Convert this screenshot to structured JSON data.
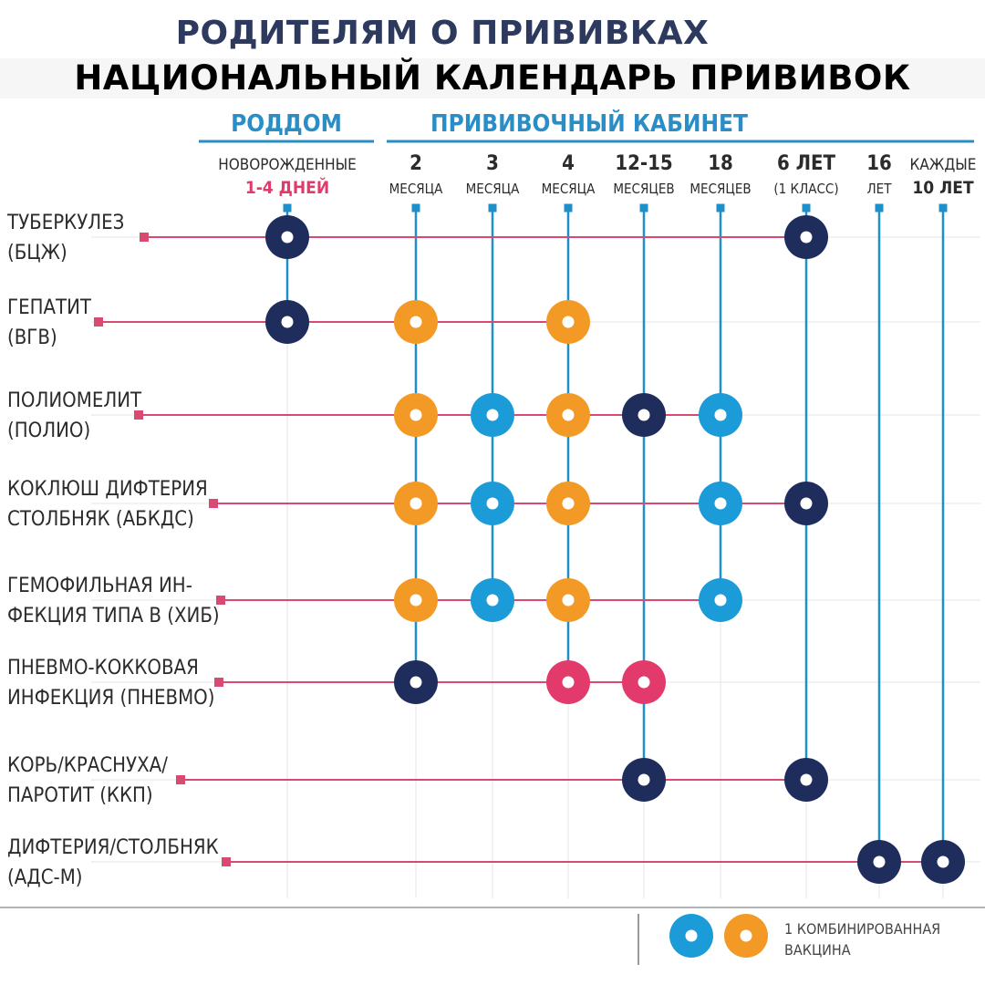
{
  "header": {
    "subtitle": "РОДИТЕЛЯМ О ПРИВИВКАХ",
    "title": "НАЦИОНАЛЬНЫЙ КАЛЕНДАРЬ ПРИВИВОК"
  },
  "colors": {
    "navy": "#1f2d5c",
    "blue": "#1b9bd7",
    "orange": "#f39a26",
    "pink": "#e23a6b",
    "group_label": "#2a8ec6",
    "row_line": "#d84a72",
    "column_line": "#1f8fc9",
    "grid": "#e4e4e4",
    "text": "#2b2b2b"
  },
  "chart_data": {
    "type": "table",
    "groups": [
      {
        "label": "РОДДОМ",
        "columns": [
          0
        ]
      },
      {
        "label": "ПРИВИВОЧНЫЙ КАБИНЕТ",
        "columns": [
          1,
          2,
          3,
          4,
          5,
          6,
          7,
          8
        ]
      }
    ],
    "columns": [
      {
        "line1": "НОВОРОЖДЕННЫЕ",
        "line2": "1-4 ДНЕЙ",
        "line2_accent": true
      },
      {
        "line1": "2",
        "line2": "МЕСЯЦА"
      },
      {
        "line1": "3",
        "line2": "МЕСЯЦА"
      },
      {
        "line1": "4",
        "line2": "МЕСЯЦА"
      },
      {
        "line1": "12-15",
        "line2": "МЕСЯЦЕВ"
      },
      {
        "line1": "18",
        "line2": "МЕСЯЦЕВ"
      },
      {
        "line1": "6 ЛЕТ",
        "line2": "(1 КЛАСС)"
      },
      {
        "line1": "16",
        "line2": "ЛЕТ"
      },
      {
        "line1": "КАЖДЫЕ",
        "line2": "10 ЛЕТ",
        "line2_bold": true
      }
    ],
    "rows": [
      {
        "line1": "ТУБЕРКУЛЕЗ",
        "line2": "(БЦЖ)",
        "doses": [
          {
            "col": 0,
            "kind": "navy"
          },
          {
            "col": 6,
            "kind": "navy"
          }
        ]
      },
      {
        "line1": "ГЕПАТИТ",
        "line2": "(ВГВ)",
        "doses": [
          {
            "col": 0,
            "kind": "navy"
          },
          {
            "col": 1,
            "kind": "orange"
          },
          {
            "col": 3,
            "kind": "orange"
          }
        ]
      },
      {
        "line1": "ПОЛИОМЕЛИТ",
        "line2": "(ПОЛИО)",
        "doses": [
          {
            "col": 1,
            "kind": "orange"
          },
          {
            "col": 2,
            "kind": "blue"
          },
          {
            "col": 3,
            "kind": "orange"
          },
          {
            "col": 4,
            "kind": "navy"
          },
          {
            "col": 5,
            "kind": "blue"
          }
        ]
      },
      {
        "line1": "КОКЛЮШ ДИФТЕРИЯ",
        "line2": "СТОЛБНЯК (АБКДС)",
        "doses": [
          {
            "col": 1,
            "kind": "orange"
          },
          {
            "col": 2,
            "kind": "blue"
          },
          {
            "col": 3,
            "kind": "orange"
          },
          {
            "col": 5,
            "kind": "blue"
          },
          {
            "col": 6,
            "kind": "navy"
          }
        ]
      },
      {
        "line1": "ГЕМОФИЛЬНАЯ ИН-",
        "line2": "ФЕКЦИЯ ТИПА В (ХИБ)",
        "doses": [
          {
            "col": 1,
            "kind": "orange"
          },
          {
            "col": 2,
            "kind": "blue"
          },
          {
            "col": 3,
            "kind": "orange"
          },
          {
            "col": 5,
            "kind": "blue"
          }
        ]
      },
      {
        "line1": "ПНЕВМО-КОККОВАЯ",
        "line2": "ИНФЕКЦИЯ (ПНЕВМО)",
        "doses": [
          {
            "col": 1,
            "kind": "navy"
          },
          {
            "col": 3,
            "kind": "pink"
          },
          {
            "col": 4,
            "kind": "pink"
          }
        ]
      },
      {
        "line1": "КОРЬ/КРАСНУХА/",
        "line2": "ПАРОТИТ (ККП)",
        "doses": [
          {
            "col": 4,
            "kind": "navy"
          },
          {
            "col": 6,
            "kind": "navy"
          }
        ]
      },
      {
        "line1": "ДИФТЕРИЯ/СТОЛБНЯК",
        "line2": "(АДС-М)",
        "doses": [
          {
            "col": 7,
            "kind": "navy"
          },
          {
            "col": 8,
            "kind": "navy"
          }
        ]
      }
    ],
    "legend": {
      "text_line1": "1 КОМБИНИРОВАННАЯ",
      "text_line2": "ВАКЦИНА",
      "kinds": [
        "blue",
        "orange"
      ]
    }
  }
}
